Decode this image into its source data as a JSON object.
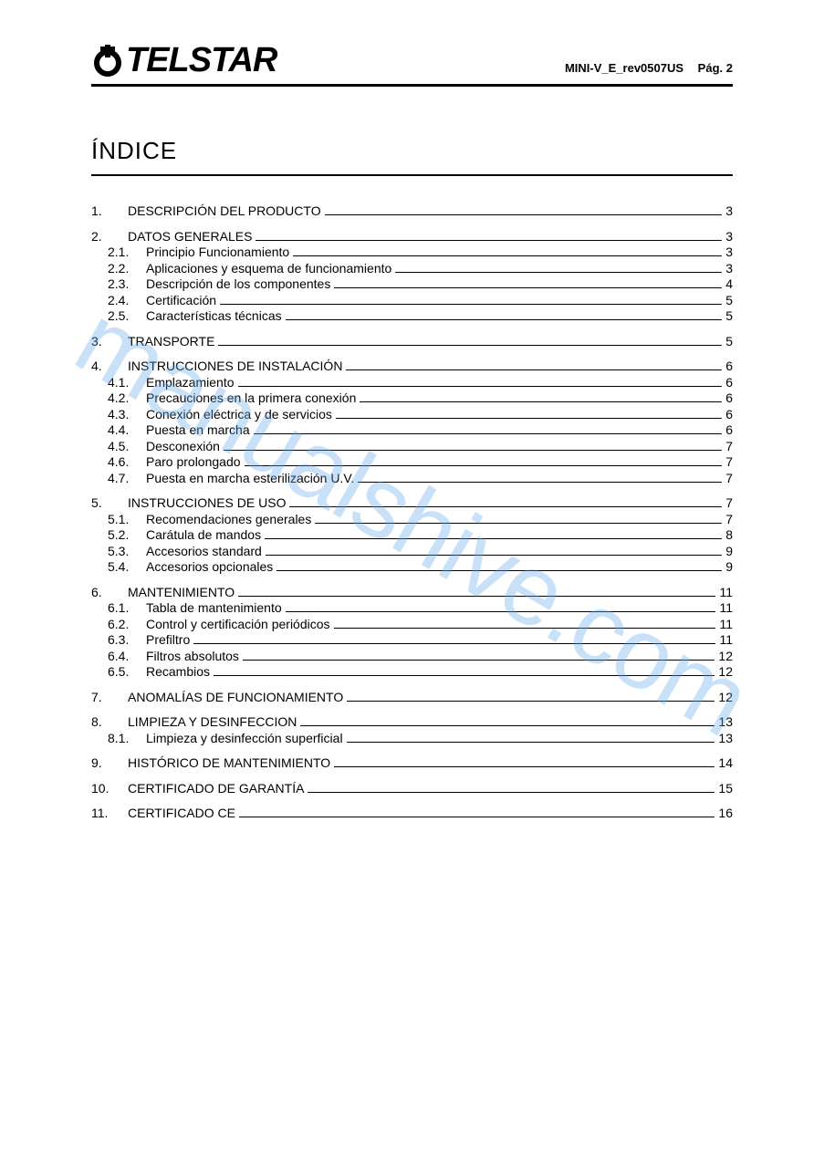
{
  "header": {
    "brand": "TELSTAR",
    "doc_ref": "MINI-V_E_rev0507US",
    "page_label": "Pág.",
    "page_number": "2"
  },
  "title": "ÍNDICE",
  "watermark": "manualshive.com",
  "toc": [
    {
      "num": "1.",
      "label": "DESCRIPCIÓN DEL PRODUCTO",
      "page": "3",
      "sub": []
    },
    {
      "num": "2.",
      "label": "DATOS GENERALES",
      "page": "3",
      "sub": [
        {
          "num": "2.1.",
          "label": "Principio Funcionamiento",
          "page": "3"
        },
        {
          "num": "2.2.",
          "label": "Aplicaciones y esquema de funcionamiento",
          "page": "3"
        },
        {
          "num": "2.3.",
          "label": "Descripción de los componentes",
          "page": "4"
        },
        {
          "num": "2.4.",
          "label": "Certificación",
          "page": "5"
        },
        {
          "num": "2.5.",
          "label": "Características técnicas",
          "page": "5"
        }
      ]
    },
    {
      "num": "3.",
      "label": "TRANSPORTE",
      "page": "5",
      "sub": []
    },
    {
      "num": "4.",
      "label": "INSTRUCCIONES DE INSTALACIÓN",
      "page": "6",
      "sub": [
        {
          "num": "4.1.",
          "label": "Emplazamiento",
          "page": "6"
        },
        {
          "num": "4.2.",
          "label": "Precauciones en la primera conexión",
          "page": "6"
        },
        {
          "num": "4.3.",
          "label": "Conexión eléctrica y de servicios",
          "page": "6"
        },
        {
          "num": "4.4.",
          "label": "Puesta en marcha",
          "page": "6"
        },
        {
          "num": "4.5.",
          "label": "Desconexión",
          "page": "7"
        },
        {
          "num": "4.6.",
          "label": "Paro prolongado",
          "page": "7"
        },
        {
          "num": "4.7.",
          "label": "Puesta en marcha esterilización U.V.",
          "page": "7"
        }
      ]
    },
    {
      "num": "5.",
      "label": "INSTRUCCIONES DE USO",
      "page": "7",
      "sub": [
        {
          "num": "5.1.",
          "label": "Recomendaciones generales",
          "page": "7"
        },
        {
          "num": "5.2.",
          "label": "Carátula de mandos",
          "page": "8"
        },
        {
          "num": "5.3.",
          "label": "Accesorios standard",
          "page": "9"
        },
        {
          "num": "5.4.",
          "label": "Accesorios opcionales",
          "page": "9"
        }
      ]
    },
    {
      "num": "6.",
      "label": "MANTENIMIENTO",
      "page": "11",
      "sub": [
        {
          "num": "6.1.",
          "label": "Tabla de mantenimiento",
          "page": "11"
        },
        {
          "num": "6.2.",
          "label": "Control y certificación periódicos",
          "page": "11"
        },
        {
          "num": "6.3.",
          "label": "Prefiltro",
          "page": "11"
        },
        {
          "num": "6.4.",
          "label": "Filtros absolutos",
          "page": "12"
        },
        {
          "num": "6.5.",
          "label": "Recambios",
          "page": "12"
        }
      ]
    },
    {
      "num": "7.",
      "label": "ANOMALÍAS DE FUNCIONAMIENTO",
      "page": "12",
      "sub": []
    },
    {
      "num": "8.",
      "label": "LIMPIEZA Y DESINFECCION",
      "page": "13",
      "sub": [
        {
          "num": "8.1.",
          "label": "Limpieza y desinfección superficial",
          "page": "13"
        }
      ]
    },
    {
      "num": "9.",
      "label": "HISTÓRICO DE MANTENIMIENTO",
      "page": "14",
      "sub": []
    },
    {
      "num": "10.",
      "label": "CERTIFICADO DE GARANTÍA",
      "page": "15",
      "sub": []
    },
    {
      "num": "11.",
      "label": "CERTIFICADO CE",
      "page": "16",
      "sub": []
    }
  ]
}
